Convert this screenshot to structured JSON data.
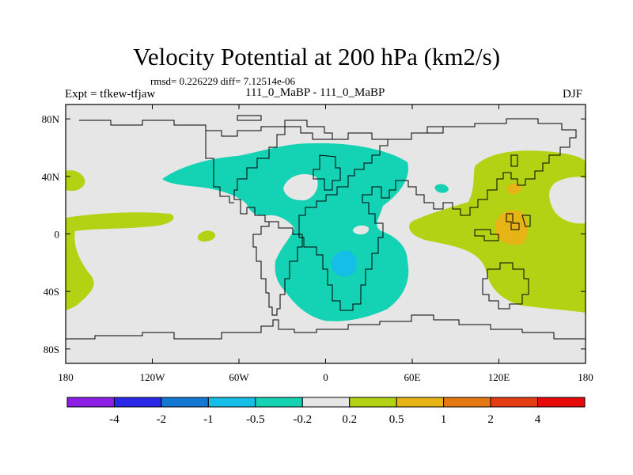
{
  "chart_data": {
    "type": "contour_map",
    "title": "Velocity Potential at 200 hPa (km2/s)",
    "stats": "rmsd= 0.226229 diff= 7.12514e-06",
    "experiment": "Expt = tfkew-tfjaw",
    "cases": "111_0_MaBP - 111_0_MaBP",
    "season": "DJF",
    "x_ticks": [
      {
        "value": -180,
        "label": "180"
      },
      {
        "value": -120,
        "label": "120W"
      },
      {
        "value": -60,
        "label": "60W"
      },
      {
        "value": 0,
        "label": "0"
      },
      {
        "value": 60,
        "label": "60E"
      },
      {
        "value": 120,
        "label": "120E"
      },
      {
        "value": 180,
        "label": "180"
      }
    ],
    "y_ticks": [
      {
        "value": 80,
        "label": "80N"
      },
      {
        "value": 40,
        "label": "40N"
      },
      {
        "value": 0,
        "label": "0"
      },
      {
        "value": -40,
        "label": "40S"
      },
      {
        "value": -80,
        "label": "80S"
      }
    ],
    "xlim": [
      -180,
      180
    ],
    "ylim": [
      -90,
      90
    ],
    "levels": [
      "-4",
      "-2",
      "-1",
      "-0.5",
      "-0.2",
      "0.2",
      "0.5",
      "1",
      "2",
      "4"
    ],
    "colorbar_colors": [
      "#8c1ee6",
      "#2828e6",
      "#1478d2",
      "#14bee6",
      "#14d2b4",
      "#e6e6e6",
      "#b4d214",
      "#e6b414",
      "#e67814",
      "#e63c14",
      "#e60a0a"
    ],
    "fill_colors": {
      "neutral": "#e6e6e6",
      "neg_02": "#14d2b4",
      "neg_05": "#14bee6",
      "pos_02": "#b4d214",
      "pos_05": "#e6b414"
    }
  }
}
